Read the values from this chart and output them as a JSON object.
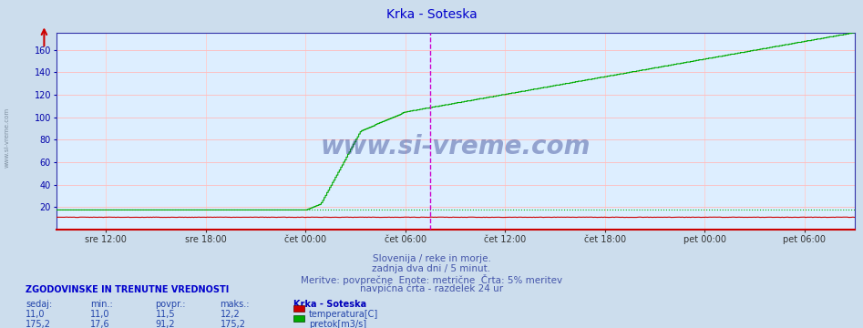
{
  "title": "Krka - Soteska",
  "title_color": "#0000cc",
  "title_fontsize": 10,
  "bg_color": "#ccdded",
  "plot_bg_color": "#ddeeff",
  "grid_color_h": "#ffbbbb",
  "grid_color_v": "#ffcccc",
  "ylim": [
    0,
    175
  ],
  "yticks": [
    20,
    40,
    60,
    80,
    100,
    120,
    140,
    160
  ],
  "n_points": 576,
  "temp_color": "#cc0000",
  "flow_color": "#00aa00",
  "avg_flow_color": "#00bb00",
  "vline_color": "#cc00cc",
  "flow_min": 17.6,
  "flow_max": 175.2,
  "flow_avg": 91.2,
  "flow_current": 175.2,
  "temp_min": 11.0,
  "temp_max": 12.2,
  "temp_avg": 11.5,
  "temp_current": 11.0,
  "xtick_labels": [
    "sre 12:00",
    "sre 18:00",
    "čet 00:00",
    "čet 06:00",
    "čet 12:00",
    "čet 18:00",
    "pet 00:00",
    "pet 06:00"
  ],
  "text_line1": "Slovenija / reke in morje.",
  "text_line2": "zadnja dva dni / 5 minut.",
  "text_line3": "Meritve: povprečne  Enote: metrične  Črta: 5% meritev",
  "text_line4": "navpična črta - razdelek 24 ur",
  "text_color": "#4455aa",
  "label_header": "ZGODOVINSKE IN TRENUTNE VREDNOSTI",
  "label_header_color": "#0000cc",
  "col_sedaj": "sedaj:",
  "col_min": "min.:",
  "col_povpr": "povpr.:",
  "col_maks": "maks.:",
  "station_name": "Krka - Soteska",
  "legend_temp": "temperatura[C]",
  "legend_flow": "pretok[m3/s]",
  "temp_box_color": "#cc0000",
  "flow_box_color": "#00aa00",
  "row1": [
    "11,0",
    "11,0",
    "11,5",
    "12,2"
  ],
  "row2": [
    "175,2",
    "17,6",
    "91,2",
    "175,2"
  ]
}
